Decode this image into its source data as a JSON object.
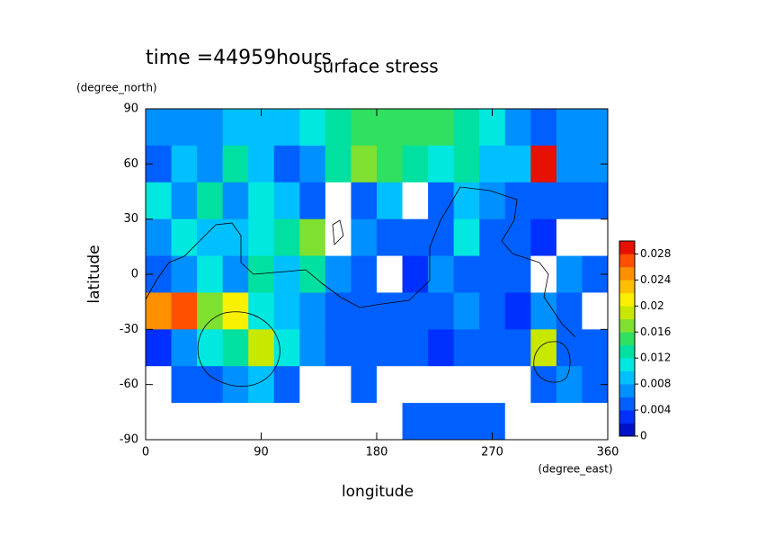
{
  "chart_data": {
    "type": "contour",
    "title": "surface stress",
    "subtitle": "time =44959hours",
    "x_label": "longitude",
    "x_unit": "(degree_east)",
    "y_label": "latitude",
    "y_unit": "(degree_north)",
    "xlim": [
      0,
      360
    ],
    "ylim": [
      -90,
      90
    ],
    "xticks": [
      0,
      90,
      180,
      270,
      360
    ],
    "yticks": [
      -90,
      -60,
      -30,
      0,
      30,
      60,
      90
    ],
    "x": [
      10,
      30,
      50,
      70,
      90,
      110,
      130,
      150,
      170,
      190,
      210,
      230,
      250,
      270,
      290,
      310,
      330,
      350
    ],
    "y": [
      80,
      60,
      40,
      20,
      0,
      -20,
      -40,
      -60,
      -80
    ],
    "z": [
      [
        0.006,
        0.006,
        0.006,
        0.008,
        0.008,
        0.008,
        0.01,
        0.012,
        0.014,
        0.014,
        0.014,
        0.014,
        0.012,
        0.01,
        0.006,
        0.004,
        0.006,
        0.006
      ],
      [
        0.004,
        0.008,
        0.006,
        0.012,
        0.008,
        0.004,
        0.006,
        0.012,
        0.016,
        0.014,
        0.012,
        0.01,
        0.012,
        0.008,
        0.008,
        0.028,
        0.006,
        0.006
      ],
      [
        0.01,
        0.006,
        0.012,
        0.006,
        0.01,
        0.008,
        0.004,
        0,
        0.004,
        0.008,
        0,
        0.004,
        0.008,
        0.006,
        0.004,
        0.004,
        0.004,
        0.004
      ],
      [
        0.006,
        0.01,
        0.008,
        0.008,
        0.01,
        0.012,
        0.016,
        0,
        0.006,
        0.004,
        0.004,
        0.004,
        0.01,
        0.004,
        0.004,
        0.002,
        0,
        0
      ],
      [
        0.004,
        0.006,
        0.01,
        0.006,
        0.012,
        0.008,
        0.012,
        0.006,
        0.004,
        0,
        0.002,
        0.006,
        0.004,
        0.004,
        0.004,
        0,
        0.006,
        0.004
      ],
      [
        0.024,
        0.026,
        0.016,
        0.02,
        0.01,
        0.008,
        0.006,
        0.004,
        0.004,
        0.004,
        0.004,
        0.004,
        0.006,
        0.004,
        0.002,
        0.006,
        0.004,
        0
      ],
      [
        0.002,
        0.006,
        0.01,
        0.012,
        0.018,
        0.01,
        0.006,
        0.004,
        0.004,
        0.004,
        0.004,
        0.002,
        0.004,
        0.004,
        0.004,
        0.018,
        0.004,
        0.004
      ],
      [
        0,
        0.004,
        0.004,
        0.006,
        0.008,
        0.004,
        0,
        0,
        0.004,
        0,
        0,
        0,
        0,
        0,
        0,
        0.004,
        0.006,
        0.004
      ],
      [
        0,
        0,
        0,
        0,
        0,
        0,
        0,
        0,
        0,
        0,
        0.004,
        0.004,
        0.004,
        0.004,
        0,
        0,
        0,
        0
      ]
    ],
    "zlim": [
      0,
      0.03
    ],
    "zticks": [
      0,
      0.004,
      0.008,
      0.012,
      0.016,
      0.02,
      0.024,
      0.028
    ],
    "zero_color": "#ffffff",
    "colors": [
      "#0010c8",
      "#0030ff",
      "#0060ff",
      "#0090ff",
      "#00c0ff",
      "#00e8e0",
      "#00e0a0",
      "#30e060",
      "#80e030",
      "#c8e800",
      "#f8f000",
      "#ffc000",
      "#ff9000",
      "#ff5000",
      "#e81000"
    ]
  }
}
